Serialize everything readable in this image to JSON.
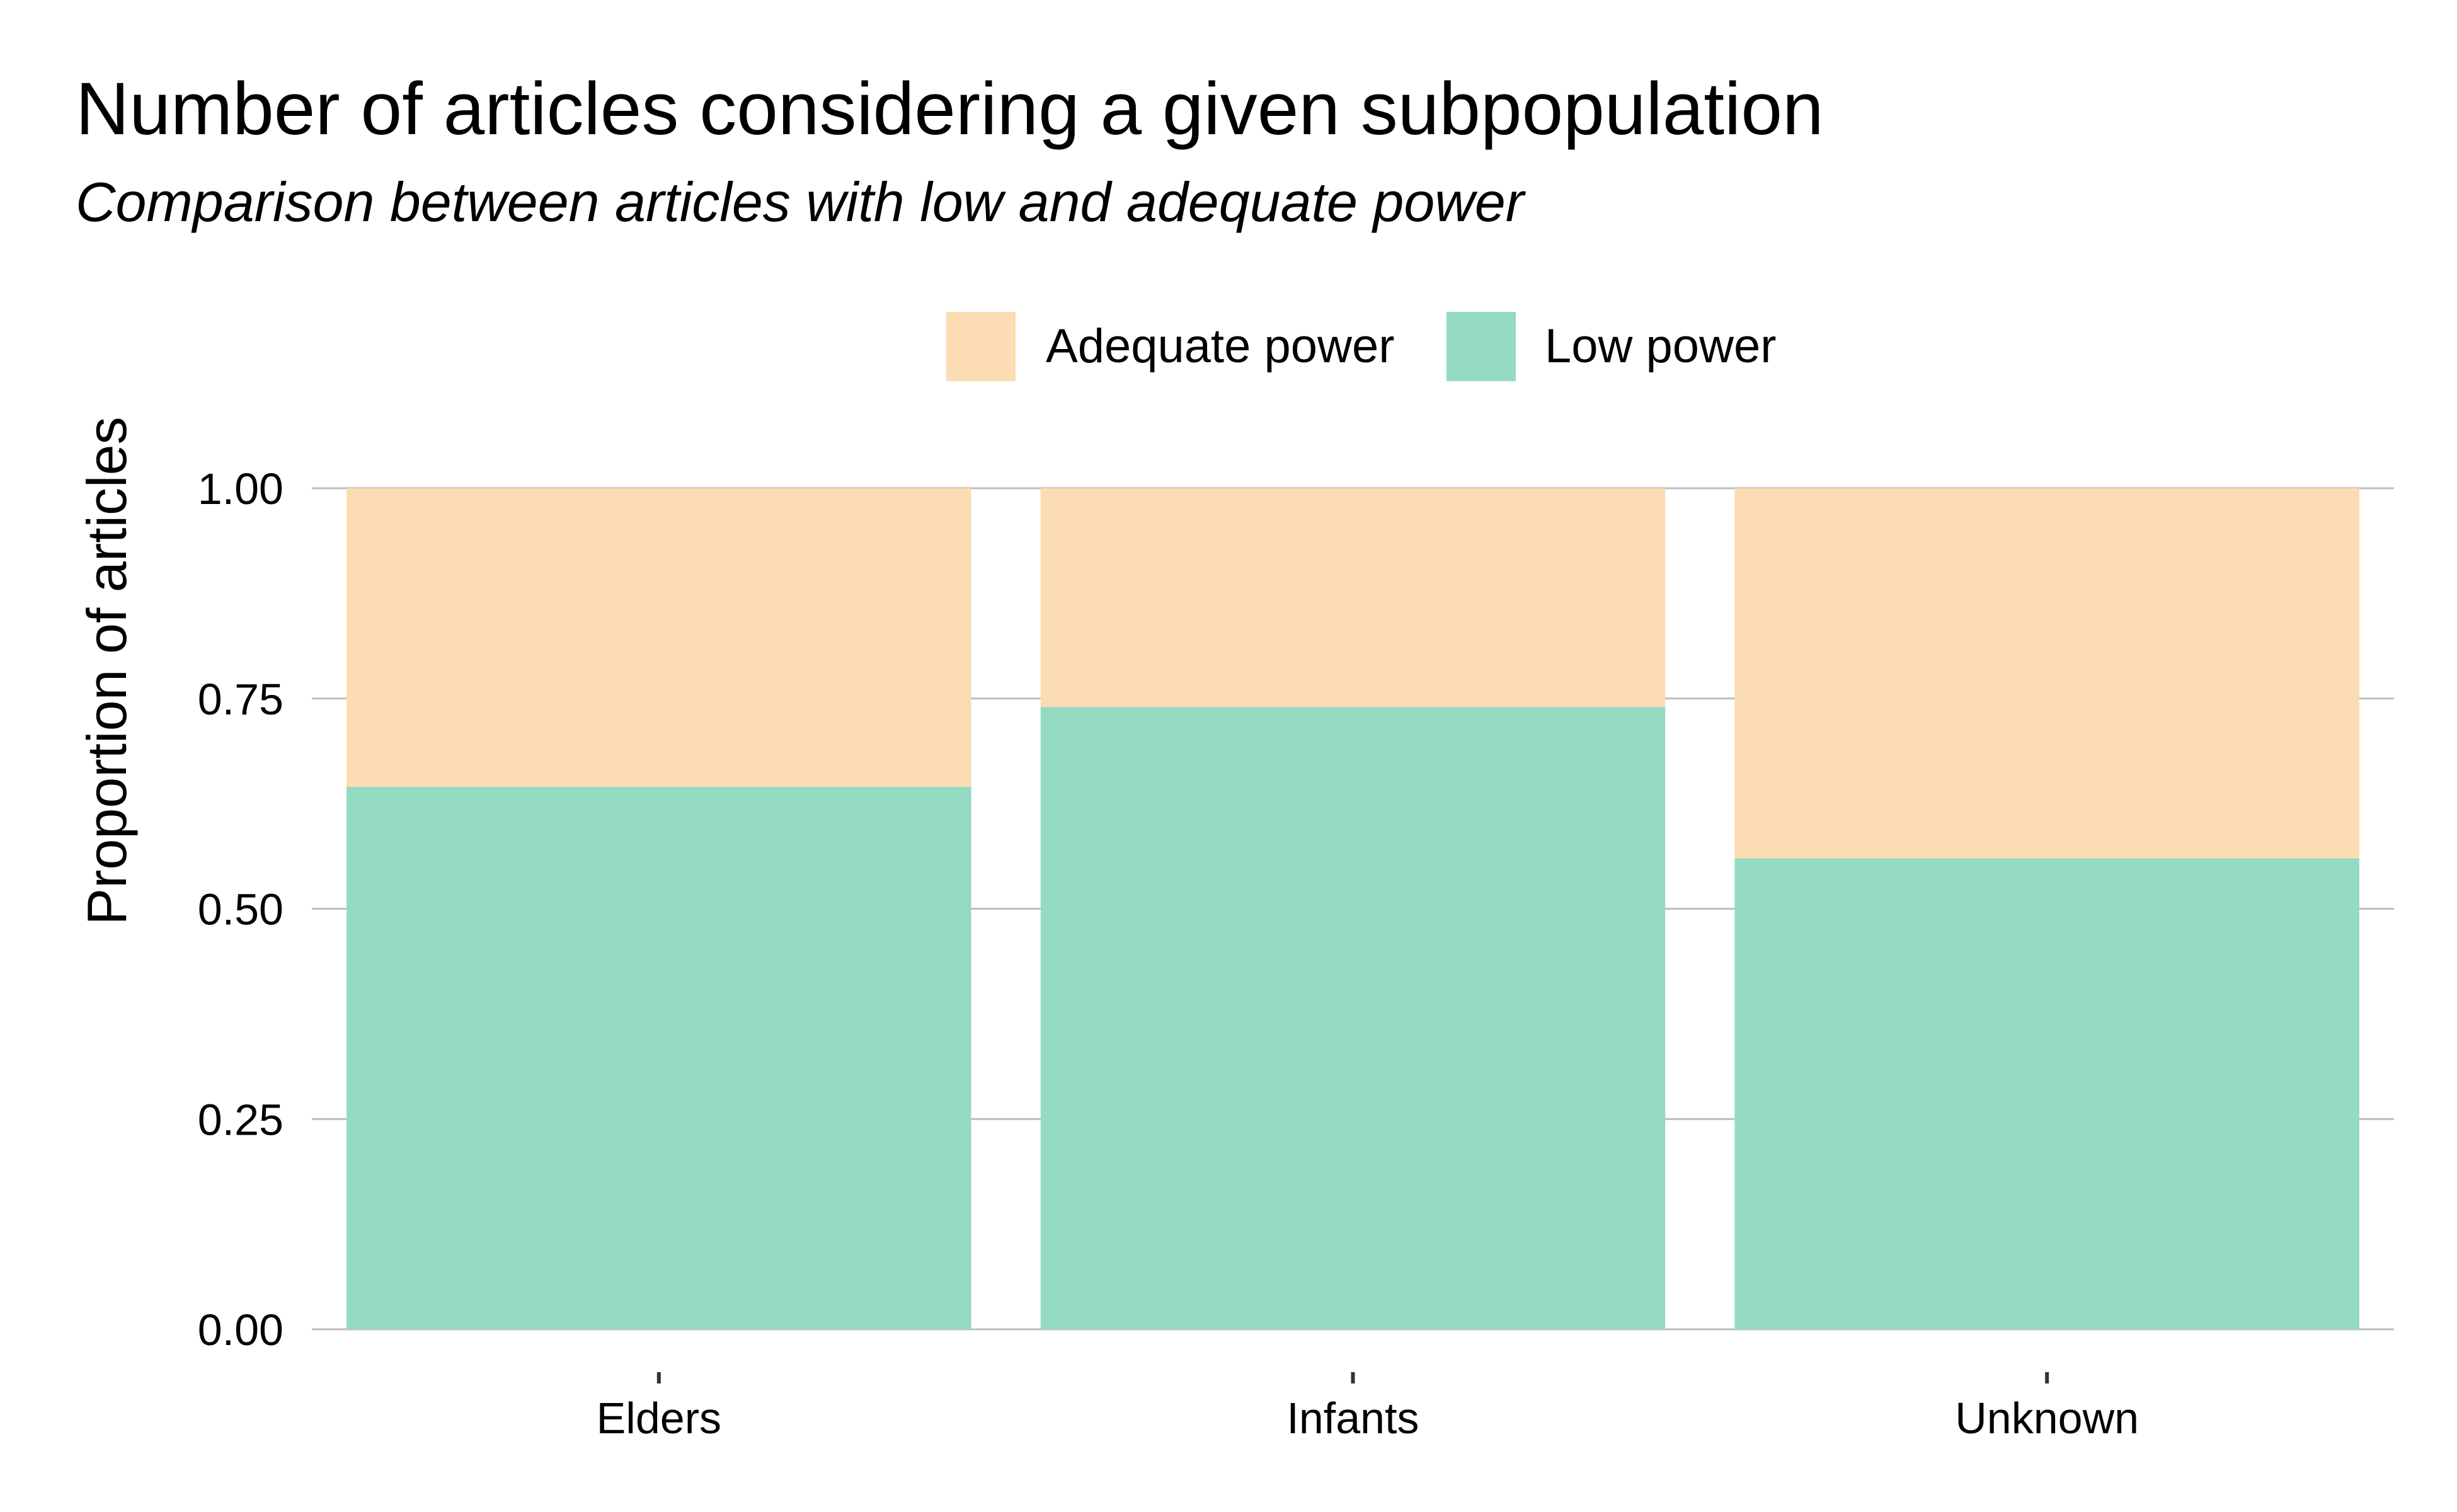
{
  "chart_data": {
    "type": "bar",
    "stacked": true,
    "title": "Number of articles considering a given subpopulation",
    "subtitle": "Comparison between articles with low and adequate power",
    "xlabel": "",
    "ylabel": "Proportion of articles",
    "categories": [
      "Elders",
      "Infants",
      "Unknown"
    ],
    "series": [
      {
        "name": "Low power",
        "values": [
          0.645,
          0.74,
          0.56
        ],
        "color": "#94DAC4"
      },
      {
        "name": "Adequate power",
        "values": [
          0.355,
          0.26,
          0.44
        ],
        "color": "#FCDCB3"
      }
    ],
    "ylim": [
      0,
      1
    ],
    "yticks": [
      "0.00",
      "0.25",
      "0.50",
      "0.75",
      "1.00"
    ],
    "legend": {
      "position": "top",
      "order": [
        "Adequate power",
        "Low power"
      ]
    },
    "grid": "horizontal",
    "grid_color": "#BEBEBE"
  }
}
